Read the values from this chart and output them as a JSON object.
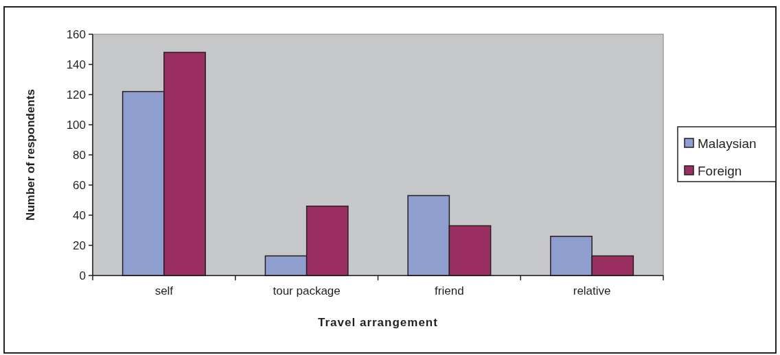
{
  "chart_data": {
    "type": "bar",
    "xlabel": "Travel arrangement",
    "ylabel": "Number of respondents",
    "categories": [
      "self",
      "tour package",
      "friend",
      "relative"
    ],
    "series": [
      {
        "name": "Malaysian",
        "color": "#8e9ece",
        "values": [
          122,
          13,
          53,
          26
        ]
      },
      {
        "name": "Foreign",
        "color": "#9c2f61",
        "values": [
          148,
          46,
          33,
          13
        ]
      }
    ],
    "ylim": [
      0,
      160
    ],
    "yticks": [
      0,
      20,
      40,
      60,
      80,
      100,
      120,
      140,
      160
    ],
    "grid": false,
    "legend": "right"
  }
}
